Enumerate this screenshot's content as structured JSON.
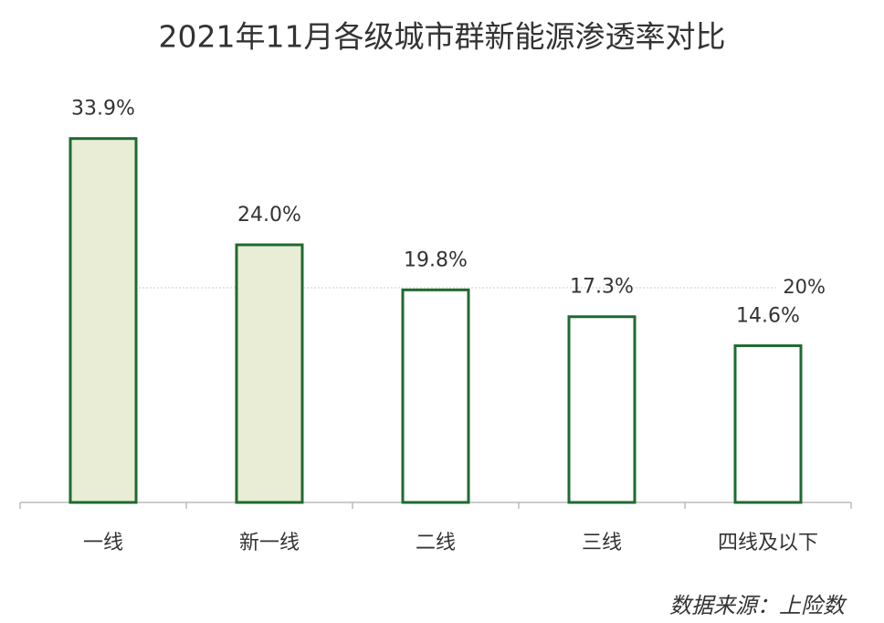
{
  "chart_data": {
    "type": "bar",
    "title": "2021年11月各级城市群新能源渗透率对比",
    "categories": [
      "一线",
      "新一线",
      "二线",
      "三线",
      "四线及以下"
    ],
    "values": [
      33.9,
      24.0,
      19.8,
      17.3,
      14.6
    ],
    "value_labels": [
      "33.9%",
      "24.0%",
      "19.8%",
      "17.3%",
      "14.6%"
    ],
    "colors": [
      "#e9edd6",
      "#e9edd6",
      "#ffffff",
      "#ffffff",
      "#ffffff"
    ],
    "edge_color": "#1f6a31",
    "ylim": [
      0,
      40
    ],
    "reference_line": {
      "value": 20,
      "label": "20%"
    },
    "source": "数据来源：上险数"
  }
}
